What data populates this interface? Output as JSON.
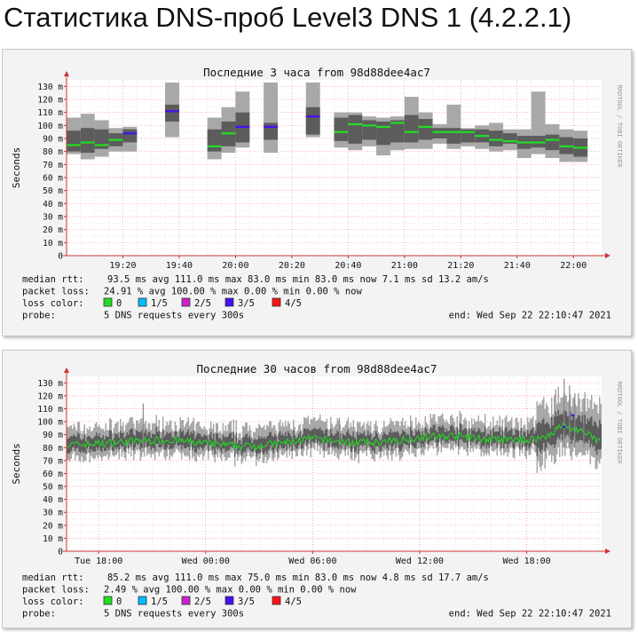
{
  "page": {
    "title": "Статистика DNS-проб Level3 DNS 1 (4.2.2.1)"
  },
  "colors": {
    "median_green": "#22dd22",
    "loss_1of5": "#00bbff",
    "loss_2of5": "#cc22cc",
    "loss_3of5": "#4411ee",
    "loss_4of5": "#ff1111",
    "smoke_light": "#aaaaaa",
    "smoke_dark": "#555555",
    "grid": "#ff9f9f"
  },
  "chart_data": [
    {
      "type": "smokeping",
      "title": "Последние 3 часа from 98d88dee4ac7",
      "ylabel": "Seconds",
      "side_label": "RRDTOOL / TOBI OETIKER",
      "ylim": [
        0,
        135
      ],
      "y_ticks": [
        "0",
        "10 m",
        "20 m",
        "30 m",
        "40 m",
        "50 m",
        "60 m",
        "70 m",
        "80 m",
        "90 m",
        "100 m",
        "110 m",
        "120 m",
        "130 m"
      ],
      "xlim_minutes": [
        1140,
        1330
      ],
      "x_ticks": [
        {
          "at": 1160,
          "label": "19:20"
        },
        {
          "at": 1180,
          "label": "19:40"
        },
        {
          "at": 1200,
          "label": "20:00"
        },
        {
          "at": 1220,
          "label": "20:20"
        },
        {
          "at": 1240,
          "label": "20:40"
        },
        {
          "at": 1260,
          "label": "21:00"
        },
        {
          "at": 1280,
          "label": "21:20"
        },
        {
          "at": 1300,
          "label": "21:40"
        },
        {
          "at": 1320,
          "label": "22:00"
        }
      ],
      "samples": [
        {
          "t": 1140,
          "min": 78,
          "p25": 80,
          "median": 85,
          "p75": 96,
          "max": 106,
          "loss": 0
        },
        {
          "t": 1145,
          "min": 74,
          "p25": 79,
          "median": 87,
          "p75": 98,
          "max": 109,
          "loss": 0
        },
        {
          "t": 1150,
          "min": 76,
          "p25": 82,
          "median": 85,
          "p75": 97,
          "max": 104,
          "loss": 0
        },
        {
          "t": 1155,
          "min": 80,
          "p25": 84,
          "median": 89,
          "p75": 94,
          "max": 98,
          "loss": 0
        },
        {
          "t": 1160,
          "min": 80,
          "p25": 87,
          "median": 94,
          "p75": 97,
          "max": 99,
          "loss": 3
        },
        {
          "t": 1175,
          "min": 91,
          "p25": 103,
          "median": 111,
          "p75": 116,
          "max": 133,
          "loss": 3
        },
        {
          "t": 1190,
          "min": 74,
          "p25": 80,
          "median": 84,
          "p75": 97,
          "max": 106,
          "loss": 0
        },
        {
          "t": 1195,
          "min": 79,
          "p25": 84,
          "median": 94,
          "p75": 103,
          "max": 114,
          "loss": 0
        },
        {
          "t": 1200,
          "min": 83,
          "p25": 87,
          "median": 99,
          "p75": 110,
          "max": 126,
          "loss": 3
        },
        {
          "t": 1210,
          "min": 79,
          "p25": 89,
          "median": 99,
          "p75": 102,
          "max": 133,
          "loss": 3
        },
        {
          "t": 1225,
          "min": 91,
          "p25": 93,
          "median": 107,
          "p75": 114,
          "max": 133,
          "loss": 3
        },
        {
          "t": 1235,
          "min": 83,
          "p25": 88,
          "median": 95,
          "p75": 106,
          "max": 110,
          "loss": 0
        },
        {
          "t": 1240,
          "min": 81,
          "p25": 86,
          "median": 101,
          "p75": 108,
          "max": 110,
          "loss": 0
        },
        {
          "t": 1245,
          "min": 84,
          "p25": 89,
          "median": 100,
          "p75": 104,
          "max": 107,
          "loss": 0
        },
        {
          "t": 1250,
          "min": 77,
          "p25": 85,
          "median": 99,
          "p75": 103,
          "max": 106,
          "loss": 0
        },
        {
          "t": 1255,
          "min": 81,
          "p25": 87,
          "median": 102,
          "p75": 104,
          "max": 107,
          "loss": 0
        },
        {
          "t": 1260,
          "min": 82,
          "p25": 87,
          "median": 95,
          "p75": 108,
          "max": 122,
          "loss": 0
        },
        {
          "t": 1265,
          "min": 82,
          "p25": 89,
          "median": 99,
          "p75": 105,
          "max": 110,
          "loss": 0
        },
        {
          "t": 1270,
          "min": 86,
          "p25": 90,
          "median": 95,
          "p75": 98,
          "max": 101,
          "loss": 0
        },
        {
          "t": 1275,
          "min": 82,
          "p25": 86,
          "median": 95,
          "p75": 98,
          "max": 116,
          "loss": 0
        },
        {
          "t": 1280,
          "min": 84,
          "p25": 87,
          "median": 95,
          "p75": 97,
          "max": 98,
          "loss": 0
        },
        {
          "t": 1285,
          "min": 82,
          "p25": 87,
          "median": 92,
          "p75": 97,
          "max": 100,
          "loss": 0
        },
        {
          "t": 1290,
          "min": 80,
          "p25": 84,
          "median": 89,
          "p75": 96,
          "max": 102,
          "loss": 0
        },
        {
          "t": 1295,
          "min": 81,
          "p25": 86,
          "median": 88,
          "p75": 94,
          "max": 97,
          "loss": 0
        },
        {
          "t": 1300,
          "min": 75,
          "p25": 82,
          "median": 87,
          "p75": 92,
          "max": 97,
          "loss": 0
        },
        {
          "t": 1305,
          "min": 78,
          "p25": 83,
          "median": 87,
          "p75": 92,
          "max": 126,
          "loss": 0
        },
        {
          "t": 1310,
          "min": 75,
          "p25": 81,
          "median": 89,
          "p75": 93,
          "max": 101,
          "loss": 0
        },
        {
          "t": 1315,
          "min": 72,
          "p25": 78,
          "median": 84,
          "p75": 91,
          "max": 97,
          "loss": 0
        },
        {
          "t": 1320,
          "min": 72,
          "p25": 76,
          "median": 83,
          "p75": 90,
          "max": 96,
          "loss": 0
        }
      ],
      "stats": {
        "rtt_label": "median rtt:",
        "rtt_values": "93.5 ms avg   111.0 ms max   83.0 ms min   83.0 ms now   7.1 ms sd   13.2   am/s",
        "loss_label": "packet loss:",
        "loss_values": "24.91 % avg  100.00 % max   0.00 % min   0.00 % now",
        "color_label": "loss color:",
        "probe_label": "probe:",
        "probe_value": "5 DNS requests every 300s",
        "end": "end: Wed Sep 22 22:10:47 2021"
      },
      "legend": [
        "0",
        "1/5",
        "2/5",
        "3/5",
        "4/5"
      ]
    },
    {
      "type": "smokeping",
      "title": "Последние 30 часов from 98d88dee4ac7",
      "ylabel": "Seconds",
      "side_label": "RRDTOOL / TOBI OETIKER",
      "ylim": [
        0,
        135
      ],
      "y_ticks": [
        "0",
        "10 m",
        "20 m",
        "30 m",
        "40 m",
        "50 m",
        "60 m",
        "70 m",
        "80 m",
        "90 m",
        "100 m",
        "110 m",
        "120 m",
        "130 m"
      ],
      "xlim_hours": [
        16.2,
        46.2
      ],
      "x_ticks": [
        {
          "at": 18,
          "label": "Tue 18:00"
        },
        {
          "at": 24,
          "label": "Wed 00:00"
        },
        {
          "at": 30,
          "label": "Wed 06:00"
        },
        {
          "at": 36,
          "label": "Wed 12:00"
        },
        {
          "at": 42,
          "label": "Wed 18:00"
        }
      ],
      "series_profile": [
        {
          "t": 16.2,
          "median": 82
        },
        {
          "t": 18,
          "median": 83
        },
        {
          "t": 20,
          "median": 85
        },
        {
          "t": 22,
          "median": 86
        },
        {
          "t": 24,
          "median": 83
        },
        {
          "t": 26,
          "median": 81
        },
        {
          "t": 28,
          "median": 83
        },
        {
          "t": 30,
          "median": 87
        },
        {
          "t": 32,
          "median": 84
        },
        {
          "t": 34,
          "median": 84
        },
        {
          "t": 36,
          "median": 88
        },
        {
          "t": 38,
          "median": 89
        },
        {
          "t": 40,
          "median": 86
        },
        {
          "t": 42,
          "median": 86
        },
        {
          "t": 43,
          "median": 88
        },
        {
          "t": 44,
          "median": 97
        },
        {
          "t": 45,
          "median": 93
        },
        {
          "t": 46.2,
          "median": 84
        }
      ],
      "stats": {
        "rtt_label": "median rtt:",
        "rtt_values": "85.2 ms avg   111.0 ms max   75.0 ms min   83.0 ms now   4.8 ms sd   17.7   am/s",
        "loss_label": "packet loss:",
        "loss_values": "2.49 % avg  100.00 % max   0.00 % min   0.00 % now",
        "color_label": "loss color:",
        "probe_label": "probe:",
        "probe_value": "5 DNS requests every 300s",
        "end": "end: Wed Sep 22 22:10:47 2021"
      },
      "legend": [
        "0",
        "1/5",
        "2/5",
        "3/5",
        "4/5"
      ]
    }
  ]
}
